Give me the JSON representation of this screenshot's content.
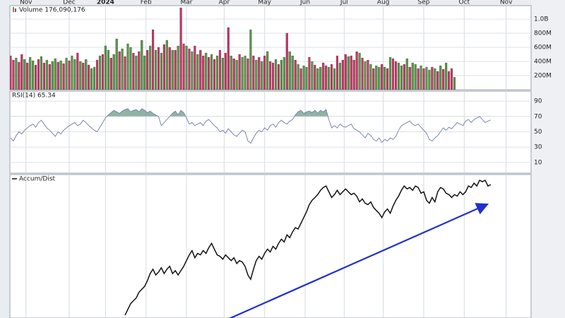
{
  "chart_data": [
    {
      "type": "bar",
      "title": "Volume 176,090,176",
      "xlim": [
        -0.25,
        186.45
      ],
      "xticks": [
        {
          "value": 5.5,
          "label": "Nov"
        },
        {
          "value": 21,
          "label": "Dec"
        },
        {
          "value": 34,
          "label": "2024"
        },
        {
          "value": 48.5,
          "label": "Feb"
        },
        {
          "value": 63,
          "label": "Mar"
        },
        {
          "value": 76.5,
          "label": "Apr"
        },
        {
          "value": 91,
          "label": "May"
        },
        {
          "value": 105.5,
          "label": "Jun"
        },
        {
          "value": 119.5,
          "label": "Jul"
        },
        {
          "value": 133.5,
          "label": "Aug"
        },
        {
          "value": 148,
          "label": "Sep"
        },
        {
          "value": 162.5,
          "label": "Oct"
        },
        {
          "value": 177.5,
          "label": "Nov"
        }
      ],
      "ylim": [
        0,
        1190
      ],
      "yticks": [
        {
          "value": 200,
          "label": "200M"
        },
        {
          "value": 400,
          "label": "400M"
        },
        {
          "value": 600,
          "label": "600M"
        },
        {
          "value": 800,
          "label": "800M"
        },
        {
          "value": 1000,
          "label": "1.0B"
        }
      ],
      "values": [
        480,
        420,
        450,
        390,
        500,
        430,
        380,
        460,
        410,
        350,
        430,
        470,
        380,
        420,
        360,
        400,
        440,
        390,
        410,
        370,
        450,
        410,
        480,
        430,
        520,
        400,
        380,
        430,
        350,
        300,
        320,
        420,
        480,
        500,
        620,
        560,
        450,
        500,
        720,
        540,
        580,
        470,
        650,
        600,
        520,
        480,
        540,
        700,
        480,
        560,
        620,
        850,
        560,
        600,
        520,
        640,
        700,
        600,
        560,
        560,
        620,
        1160,
        650,
        620,
        580,
        540,
        620,
        500,
        560,
        480,
        520,
        460,
        500,
        430,
        480,
        560,
        450,
        520,
        880,
        480,
        440,
        420,
        500,
        460,
        480,
        440,
        850,
        480,
        420,
        460,
        400,
        480,
        540,
        400,
        380,
        430,
        360,
        420,
        460,
        800,
        540,
        480,
        420,
        360,
        300,
        340,
        320,
        460,
        400,
        350,
        300,
        320,
        380,
        340,
        320,
        360,
        300,
        480,
        380,
        420,
        500,
        470,
        480,
        420,
        540,
        520,
        450,
        400,
        420,
        360,
        300,
        340,
        320,
        360,
        320,
        300,
        460,
        440,
        400,
        380,
        340,
        360,
        440,
        320,
        380,
        360,
        300,
        340,
        300,
        320,
        280,
        320,
        300,
        260,
        340,
        290,
        380,
        260,
        300,
        176
      ],
      "colors": [
        "#c36",
        "#c36",
        "#594",
        "#c36",
        "#c36",
        "#594",
        "#c36",
        "#594",
        "#594",
        "#c36",
        "#c36",
        "#594",
        "#c36",
        "#594",
        "#c36",
        "#594",
        "#594",
        "#c36",
        "#594",
        "#c36",
        "#594",
        "#c36",
        "#594",
        "#594",
        "#c36",
        "#594",
        "#c36",
        "#594",
        "#c36",
        "#594",
        "#594",
        "#c36",
        "#594",
        "#c36",
        "#594",
        "#594",
        "#c36",
        "#594",
        "#594",
        "#c36",
        "#594",
        "#c36",
        "#594",
        "#594",
        "#c36",
        "#594",
        "#c36",
        "#594",
        "#594",
        "#c36",
        "#594",
        "#c36",
        "#594",
        "#c36",
        "#594",
        "#c36",
        "#594",
        "#c36",
        "#594",
        "#c36",
        "#594",
        "#c36",
        "#c36",
        "#594",
        "#c36",
        "#594",
        "#c36",
        "#594",
        "#c36",
        "#c36",
        "#594",
        "#c36",
        "#594",
        "#c36",
        "#594",
        "#c36",
        "#594",
        "#c36",
        "#c36",
        "#594",
        "#c36",
        "#594",
        "#c36",
        "#594",
        "#594",
        "#c36",
        "#594",
        "#c36",
        "#594",
        "#c36",
        "#594",
        "#c36",
        "#594",
        "#c36",
        "#c36",
        "#594",
        "#c36",
        "#594",
        "#594",
        "#c36",
        "#594",
        "#594",
        "#c36",
        "#594",
        "#c36",
        "#594",
        "#594",
        "#c36",
        "#594",
        "#c36",
        "#594",
        "#594",
        "#c36",
        "#c36",
        "#594",
        "#c36",
        "#594",
        "#c36",
        "#594",
        "#c36",
        "#c36",
        "#594",
        "#c36",
        "#c36",
        "#c36",
        "#594",
        "#c36",
        "#594",
        "#c36",
        "#594",
        "#c36",
        "#594",
        "#594",
        "#c36",
        "#594",
        "#c36",
        "#594",
        "#c36",
        "#c36",
        "#594",
        "#594",
        "#c36",
        "#594",
        "#c36",
        "#594",
        "#594",
        "#c36",
        "#594",
        "#c36",
        "#594",
        "#594",
        "#c36",
        "#594",
        "#c36",
        "#594",
        "#c36",
        "#594",
        "#c36",
        "#c36",
        "#594"
      ]
    },
    {
      "type": "line",
      "title": "RSI(14) 65.34",
      "color": "#7b86b0",
      "fill": "#6a9a86",
      "ylim": [
        -4,
        103
      ],
      "yticks": [
        10,
        30,
        50,
        70,
        90
      ],
      "values": [
        42,
        38,
        45,
        50,
        47,
        52,
        55,
        58,
        60,
        56,
        62,
        65,
        60,
        55,
        52,
        48,
        44,
        50,
        47,
        52,
        55,
        58,
        60,
        62,
        58,
        60,
        65,
        62,
        58,
        55,
        52,
        50,
        56,
        62,
        68,
        72,
        75,
        78,
        76,
        74,
        77,
        79,
        80,
        76,
        78,
        79,
        76,
        80,
        78,
        75,
        77,
        74,
        72,
        70,
        58,
        62,
        66,
        70,
        74,
        77,
        72,
        78,
        75,
        68,
        60,
        62,
        58,
        60,
        62,
        58,
        64,
        66,
        62,
        58,
        55,
        50,
        52,
        48,
        54,
        50,
        46,
        44,
        48,
        52,
        50,
        38,
        35,
        42,
        48,
        52,
        50,
        55,
        52,
        58,
        60,
        56,
        62,
        65,
        62,
        60,
        64,
        66,
        72,
        76,
        78,
        74,
        76,
        77,
        75,
        78,
        74,
        78,
        76,
        79,
        66,
        55,
        58,
        55,
        60,
        57,
        56,
        58,
        60,
        54,
        52,
        50,
        46,
        42,
        48,
        45,
        40,
        38,
        42,
        36,
        40,
        38,
        42,
        40,
        44,
        52,
        58,
        60,
        62,
        64,
        60,
        58,
        60,
        56,
        52,
        48,
        40,
        38,
        42,
        45,
        50,
        55,
        52,
        56,
        54,
        58,
        62,
        60,
        58,
        64,
        66,
        62,
        66,
        68,
        70,
        66,
        62,
        64,
        65.34
      ]
    },
    {
      "type": "line",
      "title": "Accum/Dist",
      "color": "#111111",
      "ylim": [
        0,
        100
      ],
      "values": [
        null,
        null,
        null,
        null,
        null,
        null,
        null,
        null,
        null,
        null,
        null,
        null,
        null,
        null,
        null,
        null,
        null,
        null,
        null,
        null,
        null,
        null,
        null,
        null,
        null,
        null,
        null,
        null,
        null,
        null,
        null,
        null,
        null,
        null,
        null,
        null,
        null,
        null,
        null,
        null,
        null,
        2,
        6,
        10,
        12,
        14,
        18,
        20,
        22,
        26,
        31,
        34,
        30,
        32,
        35,
        31,
        34,
        36,
        31,
        33,
        30,
        33,
        36,
        40,
        44,
        47,
        42,
        45,
        44,
        47,
        45,
        49,
        52,
        48,
        44,
        43,
        41,
        44,
        42,
        40,
        42,
        38,
        40,
        39,
        36,
        30,
        27,
        34,
        40,
        43,
        41,
        45,
        48,
        46,
        50,
        48,
        52,
        55,
        53,
        58,
        56,
        60,
        63,
        62,
        66,
        70,
        74,
        79,
        82,
        84,
        86,
        89,
        91,
        92,
        88,
        84,
        86,
        89,
        86,
        88,
        90,
        88,
        86,
        87,
        85,
        81,
        83,
        80,
        79,
        81,
        77,
        75,
        73,
        70,
        74,
        76,
        73,
        78,
        82,
        85,
        89,
        92,
        90,
        91,
        89,
        92,
        91,
        87,
        88,
        82,
        80,
        84,
        81,
        88,
        91,
        90,
        87,
        86,
        84,
        86,
        85,
        88,
        86,
        88,
        92,
        91,
        94,
        92,
        96,
        95,
        96,
        92,
        93
      ]
    }
  ]
}
